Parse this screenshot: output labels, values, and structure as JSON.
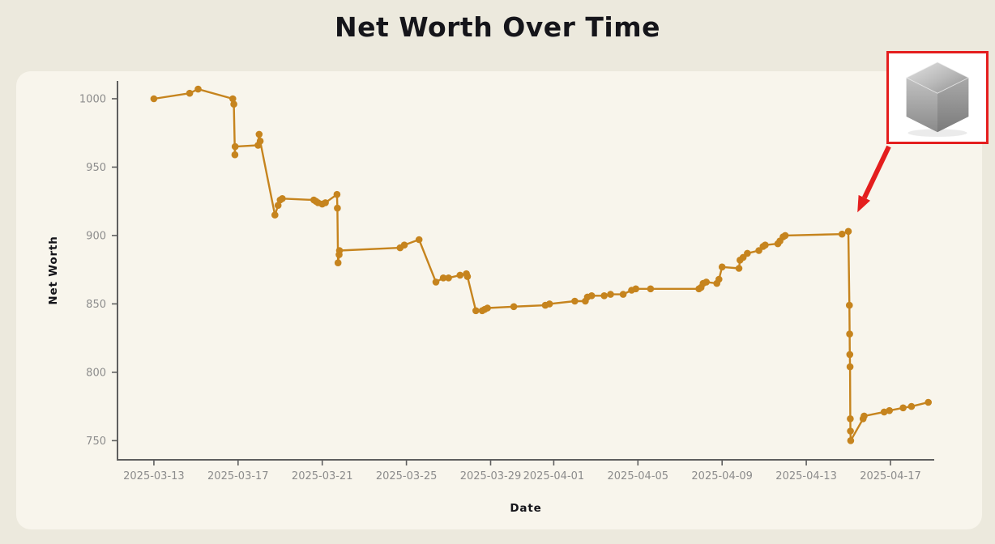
{
  "title": "Net Worth Over Time",
  "colors": {
    "page_background": "#ECE9DD",
    "card_background": "#F8F5EC",
    "line": "#C6841E",
    "spine": "#5F5F5F",
    "tick_label": "#8C8C8C",
    "text": "#15151A",
    "annotation_red": "#E41E1E",
    "inset_background": "#FFFFFF"
  },
  "chart_data": {
    "type": "line",
    "title": "Net Worth Over Time",
    "xlabel": "Date",
    "ylabel": "Net Worth",
    "grid": false,
    "legend": null,
    "marker": "circle",
    "x_unit": "days since 2025-03-13",
    "x_range_days": [
      -1.73,
      37.08
    ],
    "y_range": [
      736,
      1013
    ],
    "x_ticks": [
      {
        "t": 0,
        "label": "2025-03-13"
      },
      {
        "t": 4,
        "label": "2025-03-17"
      },
      {
        "t": 8,
        "label": "2025-03-21"
      },
      {
        "t": 12,
        "label": "2025-03-25"
      },
      {
        "t": 16,
        "label": "2025-03-29"
      },
      {
        "t": 19,
        "label": "2025-04-01"
      },
      {
        "t": 23,
        "label": "2025-04-05"
      },
      {
        "t": 27,
        "label": "2025-04-09"
      },
      {
        "t": 31,
        "label": "2025-04-13"
      },
      {
        "t": 35,
        "label": "2025-04-17"
      }
    ],
    "y_ticks": [
      750,
      800,
      850,
      900,
      950,
      1000
    ],
    "points": [
      {
        "t": 0.0,
        "v": 1000
      },
      {
        "t": 1.7,
        "v": 1004
      },
      {
        "t": 2.1,
        "v": 1007
      },
      {
        "t": 3.75,
        "v": 1000
      },
      {
        "t": 3.8,
        "v": 996
      },
      {
        "t": 3.85,
        "v": 959
      },
      {
        "t": 3.86,
        "v": 965
      },
      {
        "t": 4.95,
        "v": 966
      },
      {
        "t": 5.0,
        "v": 974
      },
      {
        "t": 5.05,
        "v": 969
      },
      {
        "t": 5.75,
        "v": 915
      },
      {
        "t": 5.9,
        "v": 922
      },
      {
        "t": 6.0,
        "v": 926
      },
      {
        "t": 6.1,
        "v": 927
      },
      {
        "t": 7.6,
        "v": 926
      },
      {
        "t": 7.7,
        "v": 925
      },
      {
        "t": 7.8,
        "v": 924
      },
      {
        "t": 8.0,
        "v": 923
      },
      {
        "t": 8.15,
        "v": 924
      },
      {
        "t": 8.7,
        "v": 930
      },
      {
        "t": 8.72,
        "v": 920
      },
      {
        "t": 8.75,
        "v": 880
      },
      {
        "t": 8.8,
        "v": 886
      },
      {
        "t": 8.82,
        "v": 889
      },
      {
        "t": 11.7,
        "v": 891
      },
      {
        "t": 11.9,
        "v": 893
      },
      {
        "t": 12.6,
        "v": 897
      },
      {
        "t": 13.4,
        "v": 866
      },
      {
        "t": 13.75,
        "v": 869
      },
      {
        "t": 14.0,
        "v": 869
      },
      {
        "t": 14.55,
        "v": 871
      },
      {
        "t": 14.85,
        "v": 872
      },
      {
        "t": 14.9,
        "v": 870
      },
      {
        "t": 15.3,
        "v": 845
      },
      {
        "t": 15.6,
        "v": 845
      },
      {
        "t": 15.72,
        "v": 846
      },
      {
        "t": 15.85,
        "v": 847
      },
      {
        "t": 17.1,
        "v": 848
      },
      {
        "t": 18.6,
        "v": 849
      },
      {
        "t": 18.8,
        "v": 850
      },
      {
        "t": 20.0,
        "v": 852
      },
      {
        "t": 20.5,
        "v": 852
      },
      {
        "t": 20.6,
        "v": 855
      },
      {
        "t": 20.8,
        "v": 856
      },
      {
        "t": 21.4,
        "v": 856
      },
      {
        "t": 21.7,
        "v": 857
      },
      {
        "t": 22.3,
        "v": 857
      },
      {
        "t": 22.7,
        "v": 860
      },
      {
        "t": 22.9,
        "v": 861
      },
      {
        "t": 23.6,
        "v": 861
      },
      {
        "t": 25.9,
        "v": 861
      },
      {
        "t": 26.0,
        "v": 862
      },
      {
        "t": 26.1,
        "v": 865
      },
      {
        "t": 26.25,
        "v": 866
      },
      {
        "t": 26.75,
        "v": 865
      },
      {
        "t": 26.85,
        "v": 868
      },
      {
        "t": 27.0,
        "v": 877
      },
      {
        "t": 27.8,
        "v": 876
      },
      {
        "t": 27.85,
        "v": 882
      },
      {
        "t": 28.0,
        "v": 884
      },
      {
        "t": 28.2,
        "v": 887
      },
      {
        "t": 28.75,
        "v": 889
      },
      {
        "t": 28.95,
        "v": 892
      },
      {
        "t": 29.05,
        "v": 893
      },
      {
        "t": 29.65,
        "v": 894
      },
      {
        "t": 29.75,
        "v": 896
      },
      {
        "t": 29.9,
        "v": 899
      },
      {
        "t": 30.0,
        "v": 900
      },
      {
        "t": 32.7,
        "v": 901
      },
      {
        "t": 33.0,
        "v": 903
      },
      {
        "t": 33.05,
        "v": 849
      },
      {
        "t": 33.06,
        "v": 828
      },
      {
        "t": 33.07,
        "v": 813
      },
      {
        "t": 33.08,
        "v": 804
      },
      {
        "t": 33.09,
        "v": 766
      },
      {
        "t": 33.1,
        "v": 757
      },
      {
        "t": 33.11,
        "v": 750
      },
      {
        "t": 33.7,
        "v": 766
      },
      {
        "t": 33.75,
        "v": 768
      },
      {
        "t": 34.7,
        "v": 771
      },
      {
        "t": 34.95,
        "v": 772
      },
      {
        "t": 35.6,
        "v": 774
      },
      {
        "t": 36.0,
        "v": 775
      },
      {
        "t": 36.8,
        "v": 778
      }
    ]
  },
  "annotation": {
    "icon": "metal-cube-image",
    "points_to": {
      "t": 33.0,
      "date": "2025-04-15",
      "value": 903
    }
  }
}
